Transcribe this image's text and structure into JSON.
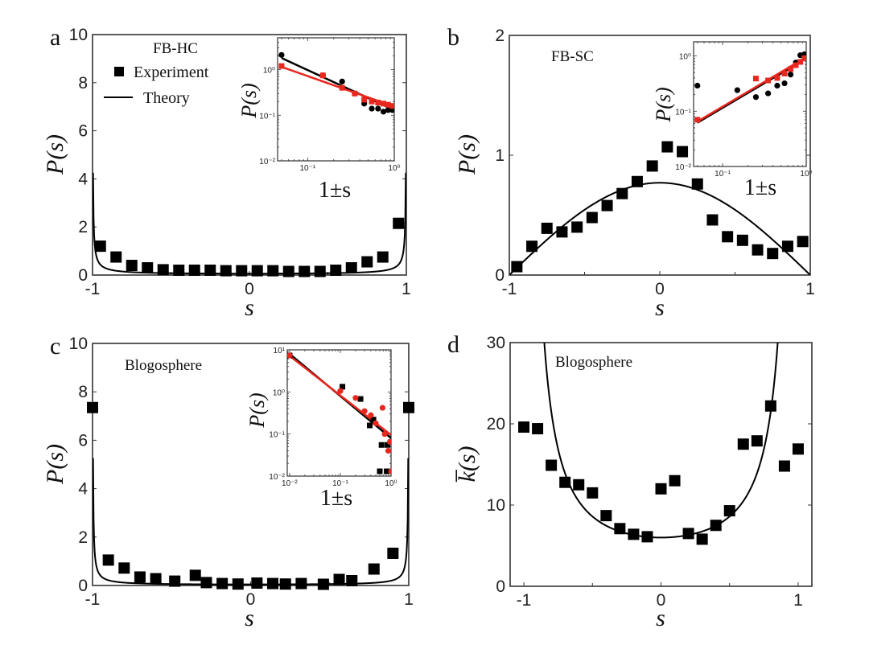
{
  "chart_data": [
    {
      "panel": "a",
      "type": "scatter",
      "title": "",
      "annotation": "FB-HC",
      "xlabel": "s",
      "ylabel": "P(s)",
      "xlim": [
        -1,
        1
      ],
      "ylim": [
        0,
        10
      ],
      "xticks": [
        -1,
        0,
        1
      ],
      "xtick_labels": [
        "-1",
        "0",
        "1"
      ],
      "yticks": [
        0,
        2,
        4,
        6,
        8,
        10
      ],
      "ytick_labels": [
        "0",
        "2",
        "4",
        "6",
        "8",
        "10"
      ],
      "legend": {
        "position": "top-left",
        "entries": [
          {
            "label": "Experiment",
            "marker": "square"
          },
          {
            "label": "Theory",
            "marker": "line"
          }
        ]
      },
      "series": [
        {
          "name": "Experiment",
          "kind": "points",
          "marker": "square",
          "x": [
            -0.95,
            -0.85,
            -0.75,
            -0.65,
            -0.55,
            -0.45,
            -0.35,
            -0.25,
            -0.15,
            -0.05,
            0.05,
            0.15,
            0.25,
            0.35,
            0.45,
            0.55,
            0.65,
            0.75,
            0.85,
            0.95
          ],
          "y": [
            1.2,
            0.75,
            0.4,
            0.3,
            0.22,
            0.2,
            0.2,
            0.2,
            0.18,
            0.18,
            0.18,
            0.18,
            0.15,
            0.15,
            0.15,
            0.2,
            0.3,
            0.55,
            0.75,
            2.15
          ]
        },
        {
          "name": "Theory",
          "kind": "curve",
          "formula": "0.072/sqrt(1-s^2)^1.7 approx U-shape",
          "sample": "u_shape",
          "params": {
            "a": 0.06,
            "p": 0.85
          }
        }
      ],
      "inset": {
        "xlabel": "1±s",
        "ylabel": "P(s)",
        "xscale": "log",
        "yscale": "log",
        "xlim": [
          0.045,
          1.0
        ],
        "ylim": [
          0.01,
          5.0
        ],
        "xtick_labels": [
          "10⁻¹",
          "10⁰"
        ],
        "xtick_values": [
          0.1,
          1
        ],
        "ytick_labels": [
          "10⁻²",
          "10⁻¹",
          "10⁰"
        ],
        "ytick_values": [
          0.01,
          0.1,
          1
        ],
        "series": [
          {
            "name": "1+s data",
            "color": "#000000",
            "marker": "circle",
            "x": [
              0.05,
              0.15,
              0.25,
              0.35,
              0.45,
              0.55,
              0.65,
              0.75,
              0.85,
              0.95
            ],
            "y": [
              2.1,
              0.75,
              0.55,
              0.3,
              0.18,
              0.14,
              0.14,
              0.12,
              0.13,
              0.13
            ]
          },
          {
            "name": "1-s data",
            "color": "#e8271f",
            "marker": "square",
            "x": [
              0.05,
              0.15,
              0.25,
              0.35,
              0.45,
              0.55,
              0.65,
              0.75,
              0.85,
              0.95
            ],
            "y": [
              1.2,
              0.75,
              0.4,
              0.3,
              0.22,
              0.2,
              0.19,
              0.18,
              0.17,
              0.16
            ]
          },
          {
            "name": "1+s fit",
            "color": "#000000",
            "kind": "line",
            "x": [
              0.05,
              1.0
            ],
            "y": [
              1.8,
              0.13
            ]
          },
          {
            "name": "1-s fit",
            "color": "#e8271f",
            "kind": "line",
            "x": [
              0.05,
              1.0
            ],
            "y": [
              1.15,
              0.155
            ]
          }
        ]
      }
    },
    {
      "panel": "b",
      "type": "scatter",
      "annotation": "FB-SC",
      "xlabel": "s",
      "ylabel": "P(s)",
      "xlim": [
        -1,
        1
      ],
      "ylim": [
        0,
        2
      ],
      "xticks": [
        -1,
        0,
        1
      ],
      "xtick_labels": [
        "-1",
        "0",
        "1"
      ],
      "yticks": [
        0,
        1,
        2
      ],
      "ytick_labels": [
        "0",
        "1",
        "2"
      ],
      "series": [
        {
          "name": "Experiment",
          "kind": "points",
          "marker": "square",
          "x": [
            -0.95,
            -0.85,
            -0.75,
            -0.65,
            -0.55,
            -0.45,
            -0.35,
            -0.25,
            -0.15,
            -0.05,
            0.05,
            0.15,
            0.25,
            0.35,
            0.45,
            0.55,
            0.65,
            0.75,
            0.85,
            0.95
          ],
          "y": [
            0.07,
            0.24,
            0.39,
            0.36,
            0.4,
            0.48,
            0.58,
            0.68,
            0.78,
            0.91,
            1.07,
            1.03,
            0.76,
            0.46,
            0.32,
            0.29,
            0.21,
            0.18,
            0.24,
            0.28
          ]
        },
        {
          "name": "Theory",
          "kind": "curve",
          "sample": "cos_bump",
          "params": {
            "a": 0.77
          }
        }
      ],
      "inset": {
        "xlabel": "1±s",
        "ylabel": "P(s)",
        "xscale": "log",
        "yscale": "log",
        "xlim": [
          0.045,
          1.0
        ],
        "ylim": [
          0.01,
          1.8
        ],
        "xtick_labels": [
          "10⁻¹",
          "10⁰"
        ],
        "xtick_values": [
          0.1,
          1
        ],
        "ytick_labels": [
          "10⁻²",
          "10⁻¹",
          "10⁰"
        ],
        "ytick_values": [
          0.01,
          0.1,
          1
        ],
        "series": [
          {
            "name": "1+s data",
            "color": "#000000",
            "marker": "circle",
            "x": [
              0.05,
              0.15,
              0.25,
              0.35,
              0.45,
              0.55,
              0.65,
              0.75,
              0.85,
              0.95
            ],
            "y": [
              0.29,
              0.24,
              0.18,
              0.21,
              0.29,
              0.32,
              0.46,
              0.76,
              1.03,
              1.07
            ]
          },
          {
            "name": "1-s data",
            "color": "#e8271f",
            "marker": "square",
            "x": [
              0.05,
              0.25,
              0.35,
              0.45,
              0.55,
              0.65,
              0.75,
              0.85,
              0.95
            ],
            "y": [
              0.07,
              0.39,
              0.36,
              0.4,
              0.48,
              0.58,
              0.68,
              0.78,
              0.91
            ]
          },
          {
            "name": "1+s fit",
            "color": "#000000",
            "kind": "line",
            "x": [
              0.05,
              1.0
            ],
            "y": [
              0.062,
              0.9
            ]
          },
          {
            "name": "1-s fit",
            "color": "#e8271f",
            "kind": "line",
            "x": [
              0.05,
              1.0
            ],
            "y": [
              0.065,
              0.95
            ]
          }
        ]
      }
    },
    {
      "panel": "c",
      "type": "scatter",
      "annotation": "Blogosphere",
      "xlabel": "s",
      "ylabel": "P(s)",
      "xlim": [
        -1,
        1
      ],
      "ylim": [
        0,
        10
      ],
      "xticks": [
        -1,
        0,
        1
      ],
      "xtick_labels": [
        "-1",
        "0",
        "1"
      ],
      "yticks": [
        0,
        2,
        4,
        6,
        8,
        10
      ],
      "ytick_labels": [
        "0",
        "2",
        "4",
        "6",
        "8",
        "10"
      ],
      "series": [
        {
          "name": "Experiment",
          "kind": "points",
          "marker": "square",
          "x": [
            -1.0,
            -0.9,
            -0.8,
            -0.7,
            -0.6,
            -0.48,
            -0.35,
            -0.28,
            -0.18,
            -0.08,
            0.04,
            0.14,
            0.22,
            0.32,
            0.46,
            0.56,
            0.64,
            0.78,
            0.9,
            1.0
          ],
          "y": [
            7.35,
            1.05,
            0.72,
            0.35,
            0.28,
            0.18,
            0.42,
            0.12,
            0.08,
            0.06,
            0.1,
            0.08,
            0.06,
            0.08,
            0.05,
            0.25,
            0.2,
            0.68,
            1.33,
            7.35
          ]
        },
        {
          "name": "Theory",
          "kind": "curve",
          "sample": "u_shape",
          "params": {
            "a": 0.045,
            "p": 0.95
          }
        }
      ],
      "inset": {
        "xlabel": "1±s",
        "ylabel": "P(s)",
        "xscale": "log",
        "yscale": "log",
        "xlim": [
          0.009,
          1.0
        ],
        "ylim": [
          0.01,
          10
        ],
        "xtick_labels": [
          "10⁻²",
          "10⁻¹",
          "10⁰"
        ],
        "xtick_values": [
          0.01,
          0.1,
          1
        ],
        "ytick_labels": [
          "10⁻²",
          "10⁻¹",
          "10⁰",
          "10¹"
        ],
        "ytick_values": [
          0.01,
          0.1,
          1,
          10
        ],
        "series": [
          {
            "name": "1+s data",
            "color": "#000000",
            "marker": "square",
            "x": [
              0.01,
              0.11,
              0.25,
              0.38,
              0.45,
              0.65,
              0.85,
              0.6,
              0.82,
              1.0
            ],
            "y": [
              7.35,
              1.33,
              0.68,
              0.16,
              0.22,
              0.055,
              0.055,
              0.013,
              0.013,
              0.065
            ]
          },
          {
            "name": "1-s data",
            "color": "#e8271f",
            "marker": "circle",
            "x": [
              0.01,
              0.1,
              0.2,
              0.3,
              0.4,
              0.5,
              0.68,
              0.75,
              0.88,
              0.95,
              1.0
            ],
            "y": [
              7.35,
              1.05,
              0.72,
              0.35,
              0.28,
              0.18,
              0.42,
              0.1,
              0.04,
              0.065,
              0.013
            ]
          },
          {
            "name": "1+s fit",
            "color": "#000000",
            "kind": "line",
            "x": [
              0.01,
              1.0
            ],
            "y": [
              8.0,
              0.08
            ]
          },
          {
            "name": "1-s fit",
            "color": "#e8271f",
            "kind": "line",
            "x": [
              0.01,
              1.0
            ],
            "y": [
              7.2,
              0.095
            ]
          }
        ]
      }
    },
    {
      "panel": "d",
      "type": "scatter",
      "annotation": "Blogosphere",
      "xlabel": "s",
      "ylabel": "k̅(s)",
      "xlim": [
        -1.1,
        1.1
      ],
      "ylim": [
        0,
        30
      ],
      "xticks": [
        -1,
        0,
        1
      ],
      "xtick_labels": [
        "-1",
        "0",
        "1"
      ],
      "yticks": [
        0,
        10,
        20,
        30
      ],
      "ytick_labels": [
        "0",
        "10",
        "20",
        "30"
      ],
      "series": [
        {
          "name": "Experiment",
          "kind": "points",
          "marker": "square",
          "x": [
            -1.0,
            -0.9,
            -0.8,
            -0.7,
            -0.6,
            -0.5,
            -0.4,
            -0.3,
            -0.2,
            -0.1,
            0.0,
            0.1,
            0.2,
            0.3,
            0.4,
            0.5,
            0.6,
            0.7,
            0.8,
            0.9,
            1.0
          ],
          "y": [
            19.6,
            19.4,
            14.9,
            12.8,
            12.5,
            11.5,
            8.7,
            7.1,
            6.4,
            6.1,
            12.0,
            13.0,
            6.5,
            5.8,
            7.5,
            9.3,
            17.5,
            17.9,
            22.2,
            14.8,
            16.9
          ]
        },
        {
          "name": "Theory",
          "kind": "curve",
          "sample": "k_bowl",
          "params": {
            "k0": 6.0,
            "p": 1.0
          }
        }
      ]
    }
  ]
}
